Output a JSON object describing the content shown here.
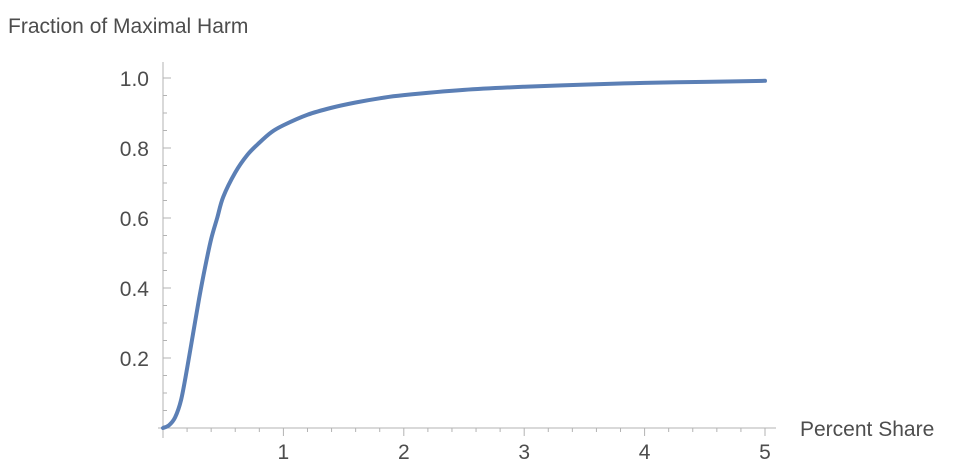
{
  "chart_data": {
    "type": "line",
    "title": "",
    "xlabel": "Percent Share",
    "ylabel": "Fraction of Maximal Harm",
    "xlim": [
      0,
      5
    ],
    "ylim": [
      0,
      1.0
    ],
    "x_ticks": [
      {
        "value": 1,
        "label": "1"
      },
      {
        "value": 2,
        "label": "2"
      },
      {
        "value": 3,
        "label": "3"
      },
      {
        "value": 4,
        "label": "4"
      },
      {
        "value": 5,
        "label": "5"
      }
    ],
    "y_ticks": [
      {
        "value": 0.2,
        "label": "0.2"
      },
      {
        "value": 0.4,
        "label": "0.4"
      },
      {
        "value": 0.6,
        "label": "0.6"
      },
      {
        "value": 0.8,
        "label": "0.8"
      },
      {
        "value": 1.0,
        "label": "1.0"
      }
    ],
    "grid": false,
    "legend": "none",
    "line_color": "#5b7fb5",
    "series": [
      {
        "x": [
          0,
          0.05,
          0.1,
          0.15,
          0.2,
          0.25,
          0.3,
          0.35,
          0.4,
          0.45,
          0.5,
          0.6,
          0.7,
          0.8,
          0.9,
          1.0,
          1.2,
          1.4,
          1.6,
          1.8,
          2.0,
          2.5,
          3.0,
          3.5,
          4.0,
          4.5,
          5.0
        ],
        "values": [
          0.0,
          0.008,
          0.03,
          0.08,
          0.17,
          0.27,
          0.37,
          0.46,
          0.54,
          0.6,
          0.66,
          0.73,
          0.78,
          0.815,
          0.845,
          0.865,
          0.895,
          0.915,
          0.93,
          0.942,
          0.951,
          0.966,
          0.975,
          0.981,
          0.986,
          0.989,
          0.992
        ]
      }
    ]
  }
}
